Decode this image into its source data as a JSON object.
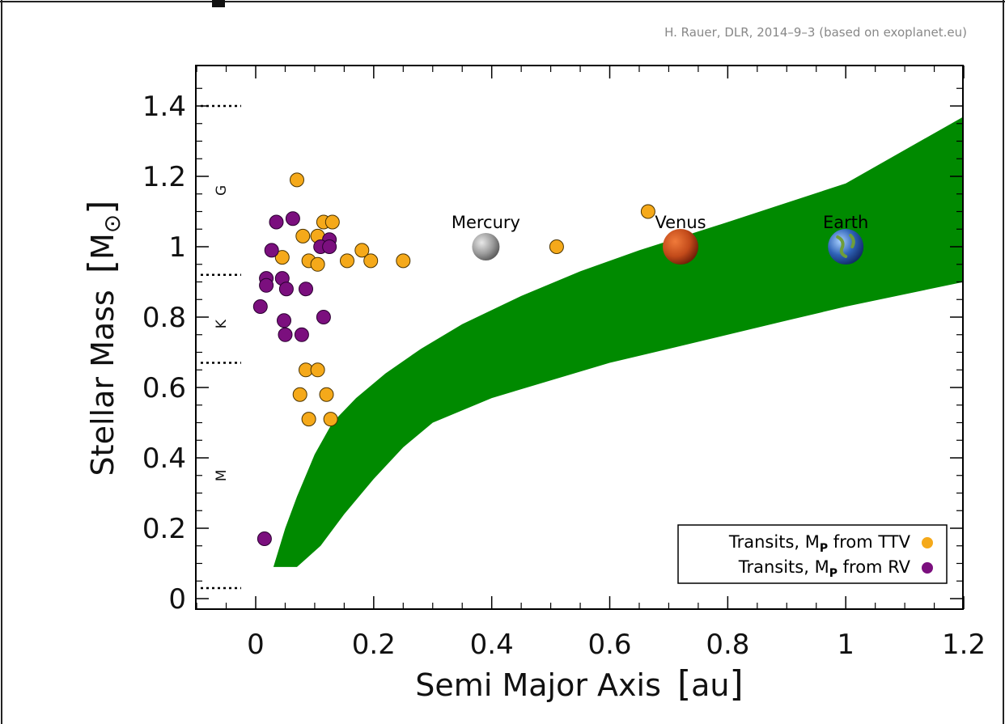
{
  "credit": "H. Rauer, DLR, 2014–9–3 (based on exoplanet.eu)",
  "colors": {
    "habitable_zone": "#008a00",
    "ttv": "#f5a91a",
    "rv": "#7b0f7e",
    "marker_edge": "#3a2a00"
  },
  "chart_data": {
    "type": "scatter",
    "title": "",
    "xlabel": "Semi Major Axis",
    "xlabel_unit": "au",
    "ylabel": "Stellar Mass",
    "ylabel_unit": "M",
    "ylabel_unit_sub": "⊙",
    "xlim": [
      -0.1,
      1.2
    ],
    "ylim": [
      -0.03,
      1.5
    ],
    "grid": false,
    "legend_position": "bottom-right",
    "x_ticks": [
      {
        "value": 0,
        "label": "0"
      },
      {
        "value": 0.2,
        "label": "0.2"
      },
      {
        "value": 0.4,
        "label": "0.4"
      },
      {
        "value": 0.6,
        "label": "0.6"
      },
      {
        "value": 0.8,
        "label": "0.8"
      },
      {
        "value": 1.0,
        "label": "1"
      },
      {
        "value": 1.2,
        "label": "1.2"
      }
    ],
    "y_ticks": [
      {
        "value": 0,
        "label": "0"
      },
      {
        "value": 0.2,
        "label": "0.2"
      },
      {
        "value": 0.4,
        "label": "0.4"
      },
      {
        "value": 0.6,
        "label": "0.6"
      },
      {
        "value": 0.8,
        "label": "0.8"
      },
      {
        "value": 1.0,
        "label": "1"
      },
      {
        "value": 1.2,
        "label": "1.2"
      },
      {
        "value": 1.4,
        "label": "1.4"
      }
    ],
    "spectral_boundaries": [
      0.03,
      0.67,
      0.92,
      1.4
    ],
    "spectral_types": [
      {
        "label": "G",
        "y": 1.16
      },
      {
        "label": "K",
        "y": 0.78
      },
      {
        "label": "M",
        "y": 0.35
      }
    ],
    "habitable_zone": {
      "name": "habitable zone",
      "inner_edge": [
        [
          0.03,
          0.09
        ],
        [
          0.05,
          0.2
        ],
        [
          0.07,
          0.29
        ],
        [
          0.1,
          0.41
        ],
        [
          0.13,
          0.5
        ],
        [
          0.17,
          0.57
        ],
        [
          0.22,
          0.64
        ],
        [
          0.28,
          0.71
        ],
        [
          0.35,
          0.78
        ],
        [
          0.45,
          0.86
        ],
        [
          0.55,
          0.93
        ],
        [
          0.65,
          0.99
        ],
        [
          0.8,
          1.07
        ],
        [
          1.0,
          1.18
        ],
        [
          1.2,
          1.37
        ]
      ],
      "outer_edge": [
        [
          1.2,
          0.9
        ],
        [
          1.0,
          0.83
        ],
        [
          0.9,
          0.79
        ],
        [
          0.8,
          0.75
        ],
        [
          0.7,
          0.71
        ],
        [
          0.6,
          0.67
        ],
        [
          0.5,
          0.62
        ],
        [
          0.4,
          0.57
        ],
        [
          0.3,
          0.5
        ],
        [
          0.25,
          0.43
        ],
        [
          0.2,
          0.34
        ],
        [
          0.15,
          0.24
        ],
        [
          0.11,
          0.15
        ],
        [
          0.07,
          0.09
        ]
      ]
    },
    "solar_system": [
      {
        "name": "Mercury",
        "x": 0.39,
        "y": 1.0,
        "color": "#9a9a9a"
      },
      {
        "name": "Venus",
        "x": 0.72,
        "y": 1.0,
        "color": "#c24a1a"
      },
      {
        "name": "Earth",
        "x": 1.0,
        "y": 1.0,
        "color": "#2f63b8"
      }
    ],
    "series": [
      {
        "name": "Transits, M_P from TTV",
        "legend_main": "Transits, M",
        "legend_sub": "P",
        "legend_rest": " from TTV",
        "color": "#f5a91a",
        "points": [
          [
            0.07,
            1.19
          ],
          [
            0.115,
            1.07
          ],
          [
            0.13,
            1.07
          ],
          [
            0.08,
            1.03
          ],
          [
            0.105,
            1.03
          ],
          [
            0.18,
            0.99
          ],
          [
            0.045,
            0.97
          ],
          [
            0.09,
            0.96
          ],
          [
            0.105,
            0.95
          ],
          [
            0.155,
            0.96
          ],
          [
            0.195,
            0.96
          ],
          [
            0.25,
            0.96
          ],
          [
            0.51,
            1.0
          ],
          [
            0.665,
            1.1
          ],
          [
            0.085,
            0.65
          ],
          [
            0.105,
            0.65
          ],
          [
            0.075,
            0.58
          ],
          [
            0.12,
            0.58
          ],
          [
            0.09,
            0.51
          ],
          [
            0.127,
            0.51
          ]
        ]
      },
      {
        "name": "Transits, M_P from RV",
        "legend_main": "Transits, M",
        "legend_sub": "P",
        "legend_rest": " from RV",
        "color": "#7b0f7e",
        "points": [
          [
            0.035,
            1.07
          ],
          [
            0.063,
            1.08
          ],
          [
            0.125,
            1.02
          ],
          [
            0.11,
            1.0
          ],
          [
            0.125,
            1.0
          ],
          [
            0.027,
            0.99
          ],
          [
            0.018,
            0.91
          ],
          [
            0.018,
            0.89
          ],
          [
            0.045,
            0.91
          ],
          [
            0.052,
            0.88
          ],
          [
            0.085,
            0.88
          ],
          [
            0.008,
            0.83
          ],
          [
            0.048,
            0.79
          ],
          [
            0.115,
            0.8
          ],
          [
            0.05,
            0.75
          ],
          [
            0.078,
            0.75
          ],
          [
            0.015,
            0.17
          ]
        ]
      }
    ]
  }
}
